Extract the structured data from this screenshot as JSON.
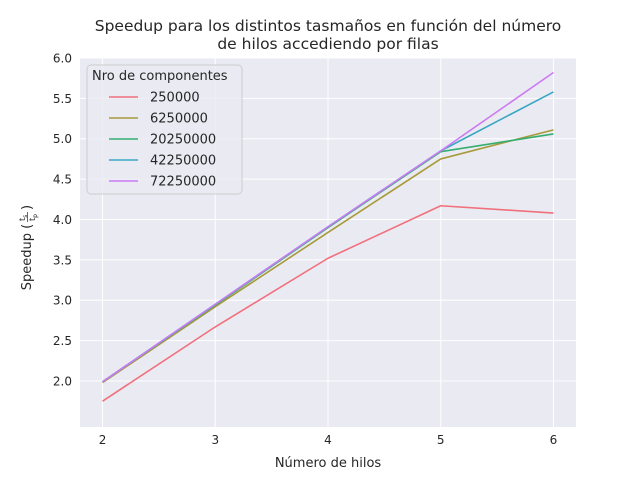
{
  "chart_data": {
    "type": "line",
    "title": "Speedup para los distintos tasmaños en función del número\nde hilos accediendo por filas",
    "xlabel": "Número de hilos",
    "ylabel_main": "Speedup (",
    "ylabel_num": "t",
    "ylabel_num_sub": "s",
    "ylabel_den": "t",
    "ylabel_den_sub": "p",
    "ylabel_close": ")",
    "x": [
      2,
      3,
      4,
      5,
      6
    ],
    "xlim": [
      1.8,
      6.2
    ],
    "ylim": [
      1.43,
      6.0
    ],
    "xticks": [
      "2",
      "3",
      "4",
      "5",
      "6"
    ],
    "yticks": [
      "2.0",
      "2.5",
      "3.0",
      "3.5",
      "4.0",
      "4.5",
      "5.0",
      "5.5",
      "6.0"
    ],
    "grid": true,
    "legend": {
      "title": "Nro de componentes",
      "placement": "top-left"
    },
    "series": [
      {
        "name": "250000",
        "color": "#f0707c",
        "values": [
          1.75,
          2.67,
          3.52,
          4.17,
          4.08
        ]
      },
      {
        "name": "6250000",
        "color": "#a89a39",
        "values": [
          1.98,
          2.92,
          3.84,
          4.75,
          5.11
        ]
      },
      {
        "name": "20250000",
        "color": "#35ae6f",
        "values": [
          1.99,
          2.94,
          3.9,
          4.84,
          5.06
        ]
      },
      {
        "name": "42250000",
        "color": "#38a7c4",
        "values": [
          1.99,
          2.95,
          3.91,
          4.85,
          5.58
        ]
      },
      {
        "name": "72250000",
        "color": "#cc7af4",
        "values": [
          1.99,
          2.95,
          3.91,
          4.85,
          5.82
        ]
      }
    ]
  }
}
